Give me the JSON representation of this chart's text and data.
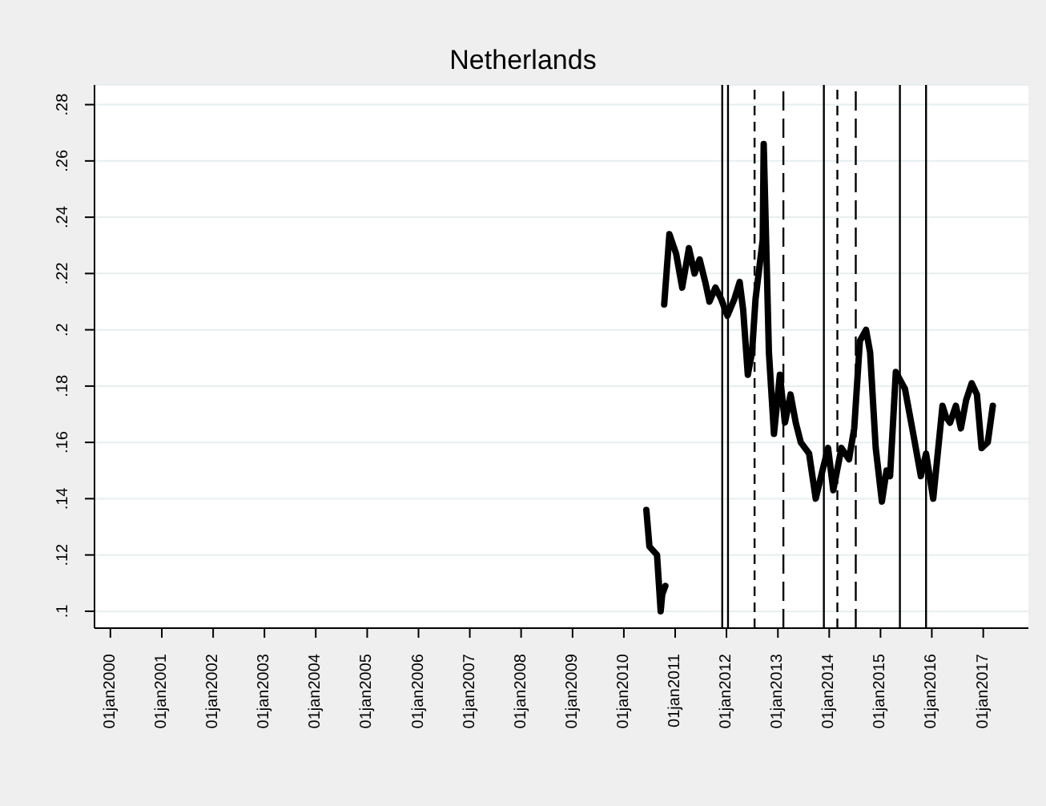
{
  "chart_data": {
    "type": "line",
    "title": "Netherlands",
    "series": [
      {
        "color": "#000000",
        "x": [
          "2010-06-10",
          "2010-07-02",
          "2010-08-25",
          "2010-09-20",
          "2010-10-01",
          "2010-10-23"
        ],
        "values": [
          0.136,
          0.123,
          0.12,
          0.1,
          0.106,
          0.109
        ]
      },
      {
        "color": "#000000",
        "x": [
          "2010-10-15",
          "2010-11-21",
          "2011-01-08",
          "2011-02-20",
          "2011-04-09",
          "2011-05-19",
          "2011-06-24",
          "2011-08-03",
          "2011-09-02",
          "2011-10-15",
          "2011-11-24",
          "2012-01-08",
          "2012-02-27",
          "2012-04-04",
          "2012-04-29",
          "2012-06-01",
          "2012-07-01",
          "2012-07-26",
          "2012-09-15",
          "2012-09-22",
          "2012-10-29",
          "2012-12-04",
          "2013-01-15",
          "2013-02-20",
          "2013-04-01",
          "2013-05-08",
          "2013-06-13",
          "2013-08-11",
          "2013-09-27",
          "2013-11-14",
          "2013-12-24",
          "2014-01-30",
          "2014-03-29",
          "2014-05-22",
          "2014-06-28",
          "2014-08-07",
          "2014-09-20",
          "2014-10-19",
          "2014-11-28",
          "2015-01-11",
          "2015-02-13",
          "2015-03-10",
          "2015-04-20",
          "2015-06-24",
          "2015-08-22",
          "2015-10-15",
          "2015-11-21",
          "2016-01-11",
          "2016-03-17",
          "2016-04-11",
          "2016-05-10",
          "2016-06-20",
          "2016-07-26",
          "2016-09-01",
          "2016-10-11",
          "2016-11-17",
          "2016-12-20",
          "2017-02-02",
          "2017-03-10"
        ],
        "values": [
          0.209,
          0.234,
          0.227,
          0.215,
          0.229,
          0.22,
          0.225,
          0.217,
          0.21,
          0.215,
          0.211,
          0.205,
          0.211,
          0.217,
          0.207,
          0.184,
          0.192,
          0.211,
          0.232,
          0.266,
          0.192,
          0.163,
          0.184,
          0.167,
          0.177,
          0.167,
          0.16,
          0.156,
          0.14,
          0.15,
          0.158,
          0.143,
          0.158,
          0.154,
          0.165,
          0.196,
          0.2,
          0.192,
          0.158,
          0.139,
          0.15,
          0.148,
          0.185,
          0.179,
          0.163,
          0.148,
          0.156,
          0.14,
          0.173,
          0.169,
          0.167,
          0.173,
          0.165,
          0.175,
          0.181,
          0.177,
          0.158,
          0.16,
          0.173
        ]
      }
    ],
    "xlim": [
      "1999-09-10",
      "2017-11-18"
    ],
    "ylim": [
      0.094,
      0.287
    ],
    "xticks": [
      {
        "value": "2000-01-01",
        "label": "01jan2000"
      },
      {
        "value": "2001-01-01",
        "label": "01jan2001"
      },
      {
        "value": "2002-01-01",
        "label": "01jan2002"
      },
      {
        "value": "2003-01-01",
        "label": "01jan2003"
      },
      {
        "value": "2004-01-01",
        "label": "01jan2004"
      },
      {
        "value": "2005-01-01",
        "label": "01jan2005"
      },
      {
        "value": "2006-01-01",
        "label": "01jan2006"
      },
      {
        "value": "2007-01-01",
        "label": "01jan2007"
      },
      {
        "value": "2008-01-01",
        "label": "01jan2008"
      },
      {
        "value": "2009-01-01",
        "label": "01jan2009"
      },
      {
        "value": "2010-01-01",
        "label": "01jan2010"
      },
      {
        "value": "2011-01-01",
        "label": "01jan2011"
      },
      {
        "value": "2012-01-01",
        "label": "01jan2012"
      },
      {
        "value": "2013-01-01",
        "label": "01jan2013"
      },
      {
        "value": "2014-01-01",
        "label": "01jan2014"
      },
      {
        "value": "2015-01-01",
        "label": "01jan2015"
      },
      {
        "value": "2016-01-01",
        "label": "01jan2016"
      },
      {
        "value": "2017-01-01",
        "label": "01jan2017"
      }
    ],
    "yticks": [
      {
        "value": 0.1,
        "label": ".1"
      },
      {
        "value": 0.12,
        "label": ".12"
      },
      {
        "value": 0.14,
        "label": ".14"
      },
      {
        "value": 0.16,
        "label": ".16"
      },
      {
        "value": 0.18,
        "label": ".18"
      },
      {
        "value": 0.2,
        "label": ".2"
      },
      {
        "value": 0.22,
        "label": ".22"
      },
      {
        "value": 0.24,
        "label": ".24"
      },
      {
        "value": 0.26,
        "label": ".26"
      },
      {
        "value": 0.28,
        "label": ".28"
      }
    ],
    "grid": "y",
    "ref_lines": [
      {
        "axis": "x",
        "value": "2011-12-02",
        "color": "#000000",
        "line_style": "solid"
      },
      {
        "axis": "x",
        "value": "2012-01-12",
        "color": "#000000",
        "line_style": "solid"
      },
      {
        "axis": "x",
        "value": "2012-07-19",
        "color": "#000000",
        "line_style": "dashed"
      },
      {
        "axis": "x",
        "value": "2013-02-09",
        "color": "#000000",
        "line_style": "longdash"
      },
      {
        "axis": "x",
        "value": "2013-11-24",
        "color": "#000000",
        "line_style": "solid"
      },
      {
        "axis": "x",
        "value": "2014-02-28",
        "color": "#000000",
        "line_style": "dashed"
      },
      {
        "axis": "x",
        "value": "2014-07-09",
        "color": "#000000",
        "line_style": "longdash"
      },
      {
        "axis": "x",
        "value": "2015-05-19",
        "color": "#000000",
        "line_style": "solid"
      },
      {
        "axis": "x",
        "value": "2015-11-21",
        "color": "#000000",
        "line_style": "solid"
      }
    ]
  }
}
